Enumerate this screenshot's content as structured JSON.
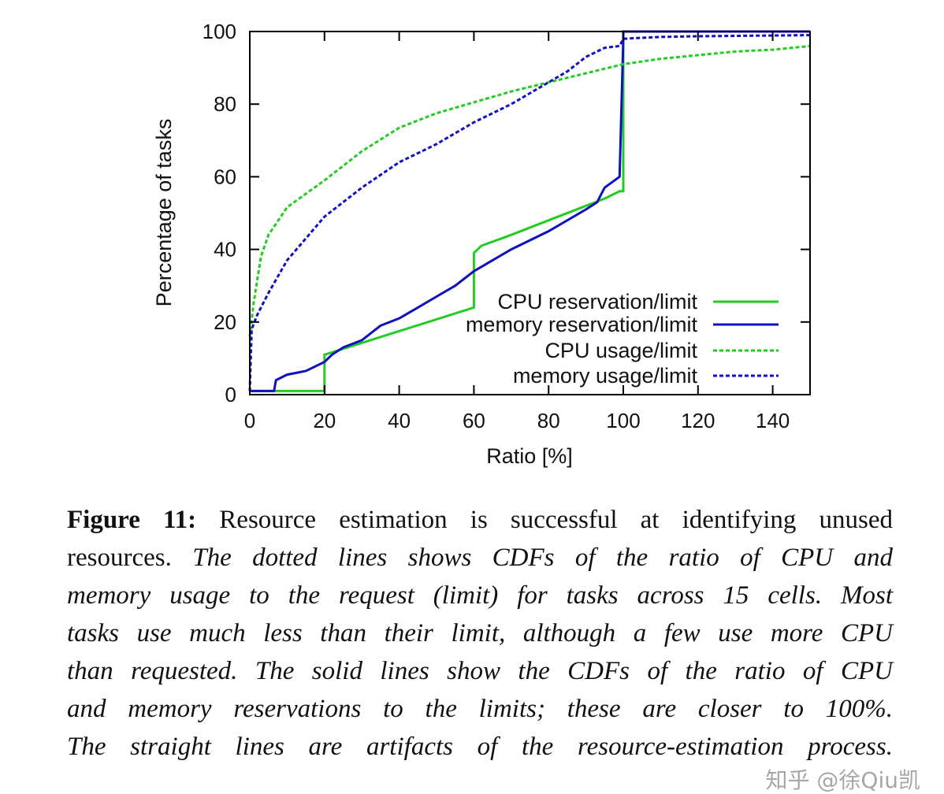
{
  "chart_data": {
    "type": "line",
    "xlabel": "Ratio [%]",
    "ylabel": "Percentage of tasks",
    "xlim": [
      0,
      150
    ],
    "ylim": [
      0,
      100
    ],
    "xticks": [
      0,
      20,
      40,
      60,
      80,
      100,
      120,
      140
    ],
    "yticks": [
      0,
      20,
      40,
      60,
      80,
      100
    ],
    "grid": false,
    "legend_position": "bottom-right",
    "series": [
      {
        "name": "CPU reservation/limit",
        "color": "#22cc22",
        "style": "solid",
        "x": [
          0,
          20,
          20,
          60,
          60,
          62,
          70,
          80,
          90,
          95,
          99,
          100,
          100,
          110,
          150
        ],
        "y": [
          1,
          1,
          11,
          24,
          39,
          41,
          44,
          48,
          52,
          54,
          56,
          56,
          100,
          100,
          100
        ]
      },
      {
        "name": "memory reservation/limit",
        "color": "#1010c0",
        "style": "solid",
        "x": [
          0,
          6.5,
          7,
          10,
          15,
          20,
          22,
          25,
          30,
          35,
          40,
          45,
          50,
          55,
          60,
          65,
          70,
          80,
          90,
          93,
          95,
          99,
          100,
          100,
          150
        ],
        "y": [
          1,
          1,
          4,
          5.5,
          6.5,
          9,
          11,
          13,
          15,
          19,
          21,
          24,
          27,
          30,
          34,
          37,
          40,
          45,
          51,
          53,
          57,
          60,
          98,
          100,
          100
        ]
      },
      {
        "name": "CPU usage/limit",
        "color": "#22cc22",
        "style": "dashed",
        "x": [
          0,
          1,
          3,
          5,
          10,
          20,
          30,
          40,
          50,
          60,
          70,
          80,
          90,
          100,
          110,
          120,
          130,
          140,
          150
        ],
        "y": [
          16,
          25,
          38,
          44,
          51.6,
          59,
          67,
          73.5,
          77.5,
          80.5,
          83.5,
          86,
          88.5,
          91,
          92.5,
          93.5,
          94.5,
          95,
          96
        ]
      },
      {
        "name": "memory usage/limit",
        "color": "#1010c0",
        "style": "dashed",
        "x": [
          0,
          0.5,
          2,
          5,
          10,
          20,
          30,
          40,
          50,
          60,
          70,
          80,
          85,
          90,
          95,
          99,
          100,
          110,
          120,
          150
        ],
        "y": [
          1,
          18,
          22,
          28,
          37,
          49,
          57,
          64,
          69,
          75,
          80,
          86,
          89,
          93,
          95.5,
          96,
          98,
          98.5,
          98.7,
          99
        ]
      }
    ]
  },
  "caption": {
    "lines": [
      [
        {
          "t": "Figure 11:",
          "s": "b"
        },
        {
          "t": " Resource estimation is successful at identifying unused",
          "s": "n"
        }
      ],
      [
        {
          "t": "resources.",
          "s": "n"
        },
        {
          "t": " The dotted lines shows CDFs of the ratio of CPU and",
          "s": "i"
        }
      ],
      [
        {
          "t": "memory usage to the request (limit) for tasks across 15 cells. Most",
          "s": "i"
        }
      ],
      [
        {
          "t": "tasks use much less than their limit, although a few use more CPU",
          "s": "i"
        }
      ],
      [
        {
          "t": "than requested. The solid lines show the CDFs of the ratio of CPU",
          "s": "i"
        }
      ],
      [
        {
          "t": "and memory reservations to the limits; these are closer to 100%.",
          "s": "i"
        }
      ],
      [
        {
          "t": "The straight lines are artifacts of the resource-estimation process.",
          "s": "i"
        }
      ]
    ]
  },
  "watermark": "知乎 @徐Qiu凯"
}
